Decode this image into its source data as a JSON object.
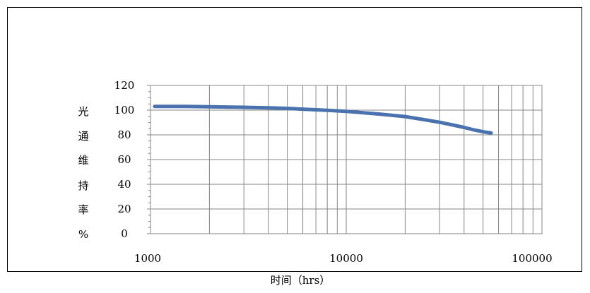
{
  "chart_data": {
    "type": "line",
    "title": "",
    "xlabel": "时间（hrs）",
    "ylabel": "光通维持率%",
    "ylabel_chars": [
      "光",
      "通",
      "维",
      "持",
      "率",
      "%"
    ],
    "x_scale": "log",
    "xlim": [
      1000,
      100000
    ],
    "ylim": [
      0,
      120
    ],
    "x_ticks": [
      1000,
      10000,
      100000
    ],
    "x_tick_labels": [
      "1000",
      "10000",
      "100000"
    ],
    "y_ticks": [
      0,
      20,
      40,
      60,
      80,
      100,
      120
    ],
    "y_tick_labels": [
      "0",
      "20",
      "40",
      "60",
      "80",
      "100",
      "120"
    ],
    "grid": true,
    "line_color": "#4a72ae",
    "series": [
      {
        "x": [
          1050,
          1500,
          2000,
          3000,
          4000,
          5000,
          6000,
          8000,
          10000,
          12000,
          15000,
          20000,
          25000,
          30000,
          35000,
          40000,
          45000,
          50000,
          55000
        ],
        "y": [
          103,
          103,
          102.7,
          102.3,
          101.9,
          101.4,
          100.8,
          99.9,
          99,
          98,
          96.7,
          94.8,
          92.3,
          90.2,
          88,
          86,
          84,
          82.5,
          81.5
        ]
      }
    ]
  }
}
